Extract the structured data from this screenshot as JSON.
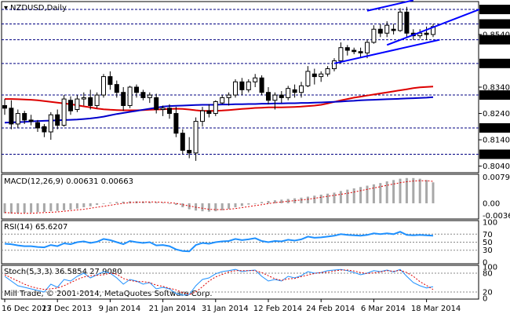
{
  "chart_data": [
    {
      "type": "candlestick",
      "title": "NZDUSD,Daily",
      "ylim": [
        0.8015,
        0.8665
      ],
      "y_ticks": [
        "0.8635",
        "0.8580",
        "0.8540",
        "0.8520",
        "0.8430",
        "0.8340",
        "0.8310",
        "0.8240",
        "0.8185",
        "0.8140",
        "0.8085",
        "0.8040"
      ],
      "highlighted_levels": [
        "0.8635",
        "0.8580",
        "0.8520",
        "0.8430",
        "0.8310",
        "0.8185",
        "0.8085"
      ],
      "x_labels": [
        "16 Dec 2013",
        "27 Dec 2013",
        "9 Jan 2014",
        "21 Jan 2014",
        "31 Jan 2014",
        "12 Feb 2014",
        "24 Feb 2014",
        "6 Mar 2014",
        "18 Mar 2014"
      ],
      "ohlc": [
        [
          0.827,
          0.8295,
          0.8235,
          0.826
        ],
        [
          0.826,
          0.829,
          0.818,
          0.82
        ],
        [
          0.82,
          0.8255,
          0.8185,
          0.824
        ],
        [
          0.824,
          0.825,
          0.82,
          0.8215
        ],
        [
          0.8215,
          0.8235,
          0.8195,
          0.821
        ],
        [
          0.8205,
          0.8215,
          0.817,
          0.8185
        ],
        [
          0.819,
          0.82,
          0.815,
          0.817
        ],
        [
          0.817,
          0.8245,
          0.814,
          0.8235
        ],
        [
          0.8235,
          0.8255,
          0.818,
          0.8195
        ],
        [
          0.8195,
          0.831,
          0.819,
          0.8295
        ],
        [
          0.829,
          0.8305,
          0.8235,
          0.825
        ],
        [
          0.8255,
          0.831,
          0.8245,
          0.8295
        ],
        [
          0.8295,
          0.832,
          0.827,
          0.83
        ],
        [
          0.83,
          0.833,
          0.8255,
          0.827
        ],
        [
          0.827,
          0.832,
          0.826,
          0.831
        ],
        [
          0.831,
          0.839,
          0.83,
          0.838
        ],
        [
          0.838,
          0.84,
          0.833,
          0.835
        ],
        [
          0.835,
          0.8365,
          0.83,
          0.832
        ],
        [
          0.832,
          0.834,
          0.825,
          0.827
        ],
        [
          0.827,
          0.8345,
          0.826,
          0.834
        ],
        [
          0.834,
          0.835,
          0.83,
          0.832
        ],
        [
          0.832,
          0.833,
          0.829,
          0.83
        ],
        [
          0.83,
          0.832,
          0.828,
          0.831
        ],
        [
          0.83,
          0.8315,
          0.824,
          0.8255
        ],
        [
          0.8255,
          0.827,
          0.823,
          0.826
        ],
        [
          0.826,
          0.8275,
          0.822,
          0.824
        ],
        [
          0.824,
          0.8265,
          0.815,
          0.8165
        ],
        [
          0.8165,
          0.818,
          0.8085,
          0.81
        ],
        [
          0.81,
          0.815,
          0.807,
          0.809
        ],
        [
          0.809,
          0.8225,
          0.806,
          0.821
        ],
        [
          0.821,
          0.8265,
          0.819,
          0.825
        ],
        [
          0.825,
          0.8275,
          0.8225,
          0.824
        ],
        [
          0.824,
          0.829,
          0.823,
          0.8285
        ],
        [
          0.828,
          0.831,
          0.8275,
          0.83
        ],
        [
          0.83,
          0.832,
          0.827,
          0.831
        ],
        [
          0.831,
          0.837,
          0.83,
          0.836
        ],
        [
          0.836,
          0.8375,
          0.831,
          0.833
        ],
        [
          0.833,
          0.837,
          0.832,
          0.836
        ],
        [
          0.836,
          0.839,
          0.834,
          0.8375
        ],
        [
          0.8375,
          0.8385,
          0.831,
          0.832
        ],
        [
          0.832,
          0.834,
          0.8275,
          0.829
        ],
        [
          0.829,
          0.832,
          0.8255,
          0.831
        ],
        [
          0.831,
          0.8325,
          0.828,
          0.83
        ],
        [
          0.83,
          0.8345,
          0.829,
          0.8335
        ],
        [
          0.833,
          0.835,
          0.83,
          0.832
        ],
        [
          0.832,
          0.836,
          0.83,
          0.8345
        ],
        [
          0.8345,
          0.842,
          0.834,
          0.84
        ],
        [
          0.839,
          0.841,
          0.835,
          0.838
        ],
        [
          0.838,
          0.84,
          0.836,
          0.839
        ],
        [
          0.839,
          0.842,
          0.838,
          0.841
        ],
        [
          0.841,
          0.845,
          0.84,
          0.844
        ],
        [
          0.844,
          0.851,
          0.843,
          0.849
        ],
        [
          0.849,
          0.85,
          0.846,
          0.848
        ],
        [
          0.848,
          0.849,
          0.8465,
          0.8475
        ],
        [
          0.8475,
          0.849,
          0.845,
          0.847
        ],
        [
          0.847,
          0.852,
          0.845,
          0.851
        ],
        [
          0.851,
          0.8575,
          0.8505,
          0.856
        ],
        [
          0.856,
          0.858,
          0.853,
          0.8545
        ],
        [
          0.8545,
          0.859,
          0.853,
          0.8575
        ],
        [
          0.856,
          0.858,
          0.854,
          0.8555
        ],
        [
          0.8555,
          0.864,
          0.855,
          0.8625
        ],
        [
          0.8625,
          0.8645,
          0.853,
          0.8545
        ],
        [
          0.8545,
          0.856,
          0.852,
          0.8535
        ],
        [
          0.8535,
          0.856,
          0.8525,
          0.8545
        ],
        [
          0.8545,
          0.857,
          0.852,
          0.854
        ],
        [
          0.854,
          0.858,
          0.853,
          0.857
        ]
      ],
      "moving_averages": [
        {
          "color": "#dd0000",
          "values": [
            0.8295,
            0.8295,
            0.8294,
            0.8293,
            0.8292,
            0.829,
            0.8287,
            0.8284,
            0.8281,
            0.8278,
            0.8275,
            0.8271,
            0.8267,
            0.8263,
            0.8259,
            0.8256,
            0.8254,
            0.8253,
            0.8252,
            0.8252,
            0.8252,
            0.8253,
            0.8254,
            0.8255,
            0.8256,
            0.8257,
            0.8258,
            0.8257,
            0.8255,
            0.8252,
            0.825,
            0.825,
            0.825,
            0.8251,
            0.8253,
            0.8255,
            0.8257,
            0.8259,
            0.8261,
            0.8262,
            0.8263,
            0.8263,
            0.8263,
            0.8264,
            0.8265,
            0.8266,
            0.8268,
            0.827,
            0.8273,
            0.8278,
            0.8284,
            0.829,
            0.8295,
            0.83,
            0.8304,
            0.8308,
            0.8312,
            0.8316,
            0.832,
            0.8324,
            0.8328,
            0.8332,
            0.8336,
            0.8339,
            0.8341,
            0.8342
          ]
        },
        {
          "color": "#0000cc",
          "values": [
            0.8205,
            0.8206,
            0.8207,
            0.8208,
            0.821,
            0.8211,
            0.8212,
            0.8213,
            0.8214,
            0.8215,
            0.8216,
            0.8217,
            0.8219,
            0.8221,
            0.8224,
            0.8228,
            0.8233,
            0.8238,
            0.8242,
            0.8246,
            0.825,
            0.8254,
            0.8258,
            0.8262,
            0.8266,
            0.8268,
            0.8269,
            0.827,
            0.8271,
            0.8272,
            0.8273,
            0.8273,
            0.8273,
            0.8274,
            0.8274,
            0.8275,
            0.8275,
            0.8276,
            0.8276,
            0.8277,
            0.8277,
            0.8278,
            0.8278,
            0.8279,
            0.8279,
            0.828,
            0.828,
            0.8281,
            0.8282,
            0.8283,
            0.8284,
            0.8285,
            0.8287,
            0.8288,
            0.829,
            0.8291,
            0.8292,
            0.8293,
            0.8294,
            0.8295,
            0.8296,
            0.8297,
            0.8298,
            0.8299,
            0.83,
            0.8302
          ]
        }
      ],
      "channel_lines": [
        {
          "start": [
            50,
            0.843
          ],
          "end": [
            66,
            0.852
          ]
        },
        {
          "start": [
            55,
            0.863
          ],
          "end": [
            62,
            0.867
          ]
        },
        {
          "start": [
            58,
            0.85
          ],
          "end": [
            72,
            0.8635
          ]
        }
      ]
    },
    {
      "type": "histogram",
      "title": "MACD(12,26,9) 0.00631 0.00663",
      "ylim": [
        -0.0045,
        0.0085
      ],
      "y_ticks": [
        "0.00792",
        "0.00",
        "-0.00368"
      ],
      "macd": [
        -0.003,
        -0.0031,
        -0.003,
        -0.0029,
        -0.0028,
        -0.0027,
        -0.0026,
        -0.0024,
        -0.0023,
        -0.0021,
        -0.0019,
        -0.0016,
        -0.0012,
        -0.0009,
        -0.0005,
        -0.0001,
        0.0002,
        0.0004,
        0.0005,
        0.0006,
        0.0006,
        0.0005,
        0.0004,
        0.0003,
        0.0002,
        0.0,
        -0.0005,
        -0.0012,
        -0.0018,
        -0.0022,
        -0.0024,
        -0.0025,
        -0.0024,
        -0.0021,
        -0.0017,
        -0.0012,
        -0.0008,
        -0.0004,
        0.0,
        0.0004,
        0.0007,
        0.0009,
        0.0011,
        0.0013,
        0.0015,
        0.0017,
        0.002,
        0.0023,
        0.0026,
        0.0029,
        0.0032,
        0.0037,
        0.0041,
        0.0045,
        0.0049,
        0.0053,
        0.0057,
        0.0061,
        0.0066,
        0.007,
        0.0074,
        0.0076,
        0.0076,
        0.0074,
        0.007,
        0.0063
      ],
      "signal": [
        -0.0028,
        -0.0029,
        -0.003,
        -0.003,
        -0.003,
        -0.0029,
        -0.0028,
        -0.0027,
        -0.0026,
        -0.0024,
        -0.0022,
        -0.002,
        -0.0018,
        -0.0015,
        -0.0012,
        -0.0009,
        -0.0006,
        -0.0003,
        0.0,
        0.0002,
        0.0003,
        0.0004,
        0.0004,
        0.0004,
        0.0003,
        0.0002,
        0.0,
        -0.0004,
        -0.0008,
        -0.0012,
        -0.0015,
        -0.0018,
        -0.0019,
        -0.0019,
        -0.0018,
        -0.0016,
        -0.0013,
        -0.001,
        -0.0007,
        -0.0004,
        -0.0001,
        0.0002,
        0.0004,
        0.0006,
        0.0008,
        0.001,
        0.0012,
        0.0015,
        0.0018,
        0.0021,
        0.0024,
        0.0027,
        0.003,
        0.0034,
        0.0038,
        0.0042,
        0.0046,
        0.005,
        0.0054,
        0.0058,
        0.0062,
        0.0065,
        0.0067,
        0.0068,
        0.0068,
        0.0066
      ]
    },
    {
      "type": "line",
      "title": "RSI(14) 65.6207",
      "ylim": [
        0,
        100
      ],
      "y_ticks": [
        "100",
        "70",
        "50",
        "30",
        "0"
      ],
      "values": [
        46,
        45,
        42,
        40,
        40,
        38,
        37,
        43,
        40,
        47,
        45,
        50,
        52,
        48,
        51,
        58,
        55,
        50,
        45,
        53,
        50,
        48,
        50,
        42,
        43,
        40,
        32,
        28,
        27,
        43,
        48,
        46,
        50,
        52,
        53,
        58,
        55,
        57,
        60,
        53,
        50,
        53,
        52,
        56,
        54,
        57,
        64,
        61,
        62,
        64,
        66,
        70,
        68,
        67,
        66,
        68,
        72,
        70,
        72,
        70,
        76,
        68,
        67,
        68,
        67,
        66
      ]
    },
    {
      "type": "line",
      "title": "Stoch(5,3,3) 36.5854 27.9080",
      "ylim": [
        0,
        100
      ],
      "y_ticks": [
        "100",
        "80",
        "20",
        "0"
      ],
      "series": [
        {
          "values": [
            70,
            55,
            40,
            35,
            30,
            25,
            20,
            45,
            35,
            60,
            55,
            70,
            80,
            65,
            75,
            85,
            80,
            65,
            45,
            60,
            55,
            45,
            50,
            30,
            35,
            30,
            15,
            10,
            12,
            40,
            60,
            65,
            78,
            85,
            88,
            92,
            85,
            88,
            90,
            70,
            55,
            60,
            55,
            70,
            65,
            72,
            85,
            80,
            82,
            88,
            90,
            92,
            88,
            82,
            75,
            80,
            88,
            85,
            90,
            84,
            92,
            70,
            50,
            40,
            33,
            37
          ]
        },
        {
          "values": [
            75,
            65,
            55,
            45,
            37,
            32,
            28,
            30,
            33,
            40,
            50,
            60,
            68,
            72,
            73,
            75,
            80,
            77,
            63,
            57,
            53,
            53,
            50,
            42,
            38,
            32,
            27,
            18,
            12,
            20,
            37,
            55,
            68,
            76,
            84,
            88,
            88,
            88,
            88,
            82,
            72,
            62,
            57,
            62,
            63,
            69,
            74,
            79,
            82,
            83,
            87,
            90,
            90,
            87,
            82,
            79,
            81,
            84,
            88,
            86,
            89,
            82,
            70,
            53,
            41,
            28
          ]
        }
      ]
    }
  ],
  "footer": {
    "copyright": "Mill Trade, © 2001-2014, MetaQuotes Software Corp."
  },
  "colors": {
    "bull": "#ffffff",
    "bear": "#000000",
    "ma_red": "#dd0000",
    "ma_blue": "#0000cc",
    "channel": "#0000ff",
    "hist": "#a8a8a8",
    "signal": "#dd0000",
    "rsi": "#1e90ff",
    "stoch_main": "#1e90ff",
    "stoch_signal": "#dd0000"
  }
}
